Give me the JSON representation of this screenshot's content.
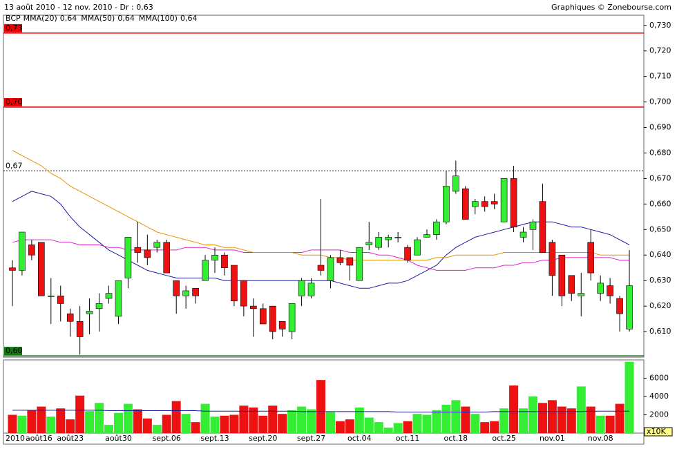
{
  "chart_data": {
    "type": "candlestick",
    "title": "13 août 2010 - 12 nov. 2010 - Dr : 0,63",
    "source": "Graphiques © Zonebourse.com",
    "symbol": "BCP",
    "categories": [
      "2010",
      "août16",
      null,
      null,
      null,
      null,
      "août23",
      null,
      null,
      null,
      null,
      "août30",
      null,
      null,
      null,
      null,
      "sept.06",
      null,
      null,
      null,
      null,
      "sept.13",
      null,
      null,
      null,
      null,
      "sept.20",
      null,
      null,
      null,
      null,
      "sept.27",
      null,
      null,
      null,
      null,
      "oct.04",
      null,
      null,
      null,
      null,
      "oct.11",
      null,
      null,
      null,
      null,
      "oct.18",
      null,
      null,
      null,
      null,
      "oct.25",
      null,
      null,
      null,
      null,
      "nov.01",
      null,
      null,
      null,
      null,
      "nov.08",
      null,
      null,
      null
    ],
    "open": [
      0.635,
      0.634,
      0.644,
      0.645,
      0.624,
      0.624,
      0.617,
      0.614,
      0.617,
      0.619,
      0.623,
      0.616,
      0.631,
      0.643,
      0.642,
      0.643,
      0.645,
      0.63,
      0.624,
      0.627,
      0.63,
      0.638,
      0.64,
      0.636,
      0.63,
      0.62,
      0.619,
      0.62,
      0.614,
      0.61,
      0.624,
      0.624,
      0.636,
      0.63,
      0.639,
      0.639,
      0.63,
      0.644,
      0.643,
      0.646,
      0.647,
      0.643,
      0.64,
      0.647,
      0.648,
      0.653,
      0.665,
      0.666,
      0.659,
      0.661,
      0.661,
      0.653,
      0.67,
      0.647,
      0.65,
      0.661,
      0.645,
      0.64,
      0.632,
      0.624,
      0.645,
      0.625,
      0.628,
      0.623,
      0.611
    ],
    "high": [
      0.638,
      0.649,
      0.646,
      0.645,
      0.631,
      0.628,
      0.619,
      0.62,
      0.623,
      0.625,
      0.628,
      0.63,
      0.647,
      0.653,
      0.648,
      0.646,
      0.646,
      0.63,
      0.628,
      0.627,
      0.64,
      0.643,
      0.641,
      0.636,
      0.63,
      0.623,
      0.621,
      0.62,
      0.614,
      0.621,
      0.631,
      0.631,
      0.662,
      0.64,
      0.642,
      0.639,
      0.643,
      0.653,
      0.649,
      0.648,
      0.649,
      0.644,
      0.647,
      0.65,
      0.654,
      0.673,
      0.677,
      0.667,
      0.662,
      0.663,
      0.664,
      0.67,
      0.675,
      0.651,
      0.654,
      0.668,
      0.646,
      0.64,
      0.632,
      0.633,
      0.65,
      0.632,
      0.631,
      0.624,
      0.642
    ],
    "low": [
      0.62,
      0.632,
      0.638,
      0.624,
      0.613,
      0.614,
      0.608,
      0.601,
      0.609,
      0.61,
      0.621,
      0.613,
      0.627,
      0.637,
      0.636,
      0.641,
      0.633,
      0.617,
      0.619,
      0.621,
      0.63,
      0.633,
      0.632,
      0.62,
      0.616,
      0.608,
      0.613,
      0.607,
      0.608,
      0.607,
      0.62,
      0.623,
      0.632,
      0.627,
      0.636,
      0.63,
      0.63,
      0.642,
      0.642,
      0.643,
      0.645,
      0.637,
      0.64,
      0.647,
      0.646,
      0.652,
      0.664,
      0.654,
      0.656,
      0.657,
      0.658,
      0.653,
      0.649,
      0.645,
      0.642,
      0.641,
      0.624,
      0.62,
      0.622,
      0.616,
      0.63,
      0.622,
      0.621,
      0.61,
      0.61
    ],
    "close": [
      0.634,
      0.649,
      0.64,
      0.624,
      0.624,
      0.621,
      0.614,
      0.608,
      0.618,
      0.621,
      0.625,
      0.63,
      0.647,
      0.641,
      0.639,
      0.645,
      0.633,
      0.624,
      0.626,
      0.624,
      0.638,
      0.64,
      0.635,
      0.622,
      0.62,
      0.619,
      0.613,
      0.61,
      0.611,
      0.621,
      0.63,
      0.629,
      0.634,
      0.639,
      0.637,
      0.636,
      0.643,
      0.645,
      0.647,
      0.647,
      0.647,
      0.638,
      0.646,
      0.648,
      0.653,
      0.667,
      0.671,
      0.654,
      0.661,
      0.659,
      0.66,
      0.67,
      0.651,
      0.649,
      0.653,
      0.641,
      0.632,
      0.624,
      0.625,
      0.625,
      0.633,
      0.629,
      0.624,
      0.617,
      0.628
    ],
    "up_color": "#33ee33",
    "down_color": "#ee1111",
    "ylim": [
      0.6,
      0.734
    ],
    "yticks": [
      {
        "value": 0.61,
        "label": "0,610"
      },
      {
        "value": 0.62,
        "label": "0,620"
      },
      {
        "value": 0.63,
        "label": "0,630"
      },
      {
        "value": 0.64,
        "label": "0,640"
      },
      {
        "value": 0.65,
        "label": "0,650"
      },
      {
        "value": 0.66,
        "label": "0,660"
      },
      {
        "value": 0.67,
        "label": "0,670"
      },
      {
        "value": 0.68,
        "label": "0,680"
      },
      {
        "value": 0.69,
        "label": "0,690"
      },
      {
        "value": 0.7,
        "label": "0,700"
      },
      {
        "value": 0.71,
        "label": "0,710"
      },
      {
        "value": 0.72,
        "label": "0,720"
      },
      {
        "value": 0.73,
        "label": "0,730"
      }
    ],
    "ma_series": [
      {
        "name": "MMA(20)",
        "last_label": "0,64",
        "color": "#1a1aa6",
        "values": [
          0.661,
          0.663,
          0.665,
          0.664,
          0.663,
          0.66,
          0.655,
          0.651,
          0.648,
          0.645,
          0.642,
          0.64,
          0.638,
          0.636,
          0.634,
          0.633,
          0.632,
          0.631,
          0.631,
          0.631,
          0.631,
          0.631,
          0.63,
          0.63,
          0.63,
          0.63,
          0.63,
          0.63,
          0.63,
          0.63,
          0.63,
          0.63,
          0.63,
          0.63,
          0.629,
          0.628,
          0.627,
          0.627,
          0.628,
          0.629,
          0.629,
          0.63,
          0.632,
          0.634,
          0.636,
          0.64,
          0.643,
          0.645,
          0.647,
          0.648,
          0.649,
          0.65,
          0.651,
          0.652,
          0.653,
          0.653,
          0.653,
          0.652,
          0.651,
          0.651,
          0.65,
          0.649,
          0.648,
          0.646,
          0.644
        ]
      },
      {
        "name": "MMA(50)",
        "last_label": "0,64",
        "color": "#dd22cc",
        "values": [
          0.645,
          0.646,
          0.646,
          0.646,
          0.646,
          0.645,
          0.645,
          0.644,
          0.644,
          0.644,
          0.643,
          0.643,
          0.642,
          0.642,
          0.642,
          0.642,
          0.642,
          0.642,
          0.643,
          0.643,
          0.643,
          0.642,
          0.642,
          0.642,
          0.641,
          0.641,
          0.641,
          0.641,
          0.641,
          0.641,
          0.641,
          0.642,
          0.642,
          0.642,
          0.642,
          0.641,
          0.641,
          0.641,
          0.64,
          0.64,
          0.639,
          0.638,
          0.636,
          0.635,
          0.634,
          0.634,
          0.634,
          0.634,
          0.635,
          0.635,
          0.635,
          0.636,
          0.636,
          0.637,
          0.637,
          0.638,
          0.638,
          0.639,
          0.639,
          0.639,
          0.639,
          0.639,
          0.639,
          0.638,
          0.638
        ]
      },
      {
        "name": "MMA(100)",
        "last_label": "0,64",
        "color": "#e59400",
        "values": [
          0.681,
          0.679,
          0.677,
          0.675,
          0.672,
          0.67,
          0.667,
          0.665,
          0.663,
          0.661,
          0.659,
          0.657,
          0.655,
          0.653,
          0.651,
          0.649,
          0.648,
          0.647,
          0.646,
          0.645,
          0.644,
          0.644,
          0.643,
          0.643,
          0.642,
          0.641,
          0.641,
          0.641,
          0.641,
          0.641,
          0.64,
          0.64,
          0.64,
          0.639,
          0.639,
          0.638,
          0.638,
          0.638,
          0.638,
          0.638,
          0.638,
          0.638,
          0.638,
          0.638,
          0.639,
          0.639,
          0.64,
          0.64,
          0.64,
          0.64,
          0.64,
          0.641,
          0.641,
          0.641,
          0.641,
          0.641,
          0.641,
          0.641,
          0.641,
          0.641,
          0.641,
          0.64,
          0.64,
          0.64,
          0.64
        ]
      }
    ],
    "levels": [
      {
        "value": 0.727,
        "label": "0,73",
        "color": "#ee0000",
        "style": "solid",
        "boxed": true
      },
      {
        "value": 0.698,
        "label": "0,70",
        "color": "#ee0000",
        "style": "solid",
        "boxed": true
      },
      {
        "value": 0.673,
        "label": "0,67",
        "color": "#000000",
        "style": "dashed",
        "boxed": false
      },
      {
        "value": 0.6005,
        "label": "0,60",
        "color": "#117711",
        "style": "solid",
        "boxed": true
      }
    ],
    "volume": {
      "values": [
        2000,
        1900,
        2500,
        2900,
        1800,
        2700,
        1500,
        4100,
        2400,
        3300,
        900,
        2200,
        3200,
        2600,
        1600,
        900,
        2000,
        3500,
        2100,
        1200,
        3200,
        1800,
        1900,
        2000,
        3000,
        2800,
        1900,
        3000,
        2100,
        2500,
        2900,
        2600,
        5800,
        2300,
        1300,
        1500,
        2800,
        1700,
        1200,
        600,
        1100,
        1300,
        2100,
        2000,
        2500,
        3100,
        3600,
        2900,
        2100,
        1200,
        1300,
        2700,
        5200,
        2700,
        4000,
        3300,
        3600,
        2900,
        2700,
        5100,
        2900,
        1900,
        1900,
        3200,
        7800
      ],
      "ma_values": [
        2500,
        2500,
        2500,
        2500,
        2500,
        2500,
        2500,
        2500,
        2500,
        2500,
        2450,
        2450,
        2450,
        2450,
        2450,
        2450,
        2450,
        2450,
        2450,
        2450,
        2400,
        2400,
        2400,
        2400,
        2400,
        2400,
        2400,
        2400,
        2400,
        2400,
        2350,
        2350,
        2350,
        2350,
        2350,
        2350,
        2350,
        2350,
        2350,
        2350,
        2300,
        2300,
        2300,
        2300,
        2300,
        2300,
        2300,
        2300,
        2300,
        2300,
        2350,
        2350,
        2350,
        2350,
        2350,
        2350,
        2350,
        2350,
        2350,
        2350,
        2400,
        2400,
        2400,
        2400,
        2400
      ],
      "ma_color": "#1a1aa6",
      "ylim": [
        0,
        8000
      ],
      "yticks": [
        2000,
        4000,
        6000
      ],
      "unit": "x10K"
    }
  }
}
